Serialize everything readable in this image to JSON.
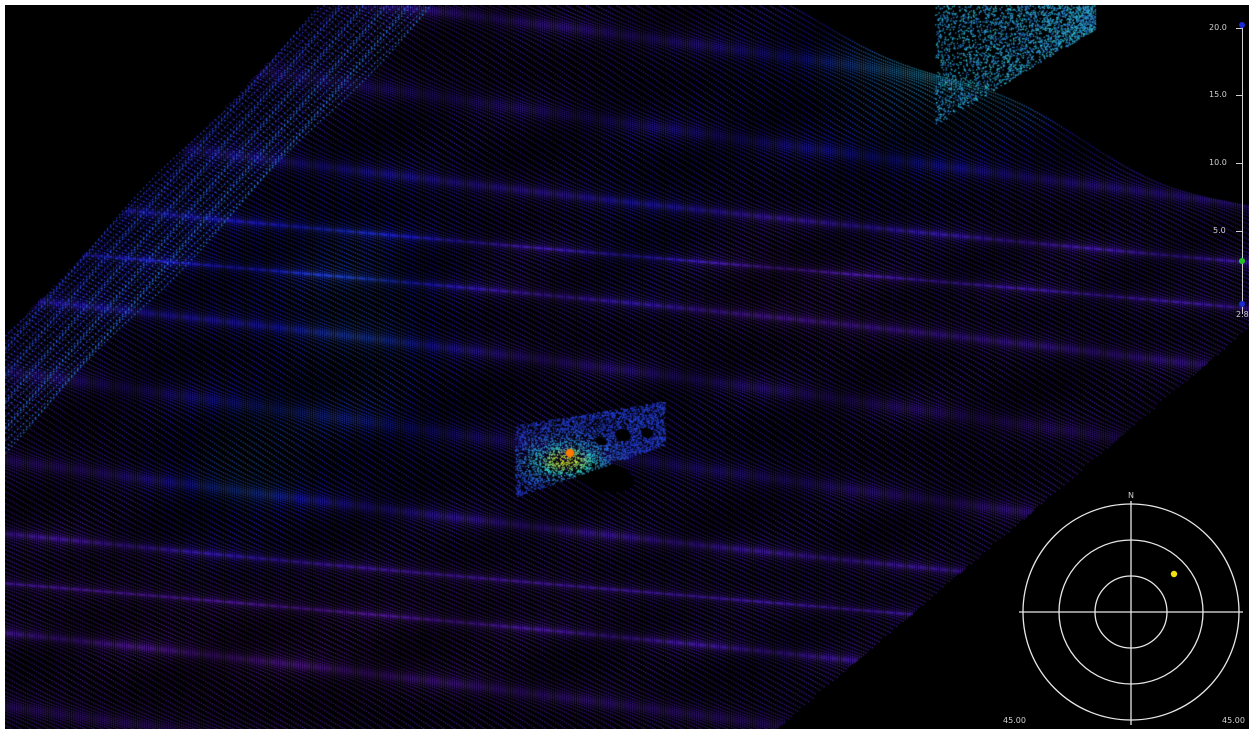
{
  "viewer": {
    "background_color": "#000000"
  },
  "depth_scale": {
    "labels": [
      "20.0",
      "15.0",
      "10.0",
      "5.0",
      "2.8"
    ],
    "values": [
      20.0,
      15.0,
      10.0,
      5.0,
      2.8
    ],
    "upper_handle_color": "#1a2bd6",
    "mid_handle_color": "#22c422",
    "lower_handle_color": "#1a2bd6",
    "mid_handle_value": 3.5
  },
  "compass": {
    "north_label": "N",
    "left_range_label": "45.00",
    "right_range_label": "45.00",
    "target_color": "#f2e012"
  },
  "colors": {
    "deep": "#7a1a7a",
    "mid": "#1f1fd0",
    "shallow": "#2fd0d0",
    "peak": "#d8e820",
    "marker": "#ff7a00"
  }
}
